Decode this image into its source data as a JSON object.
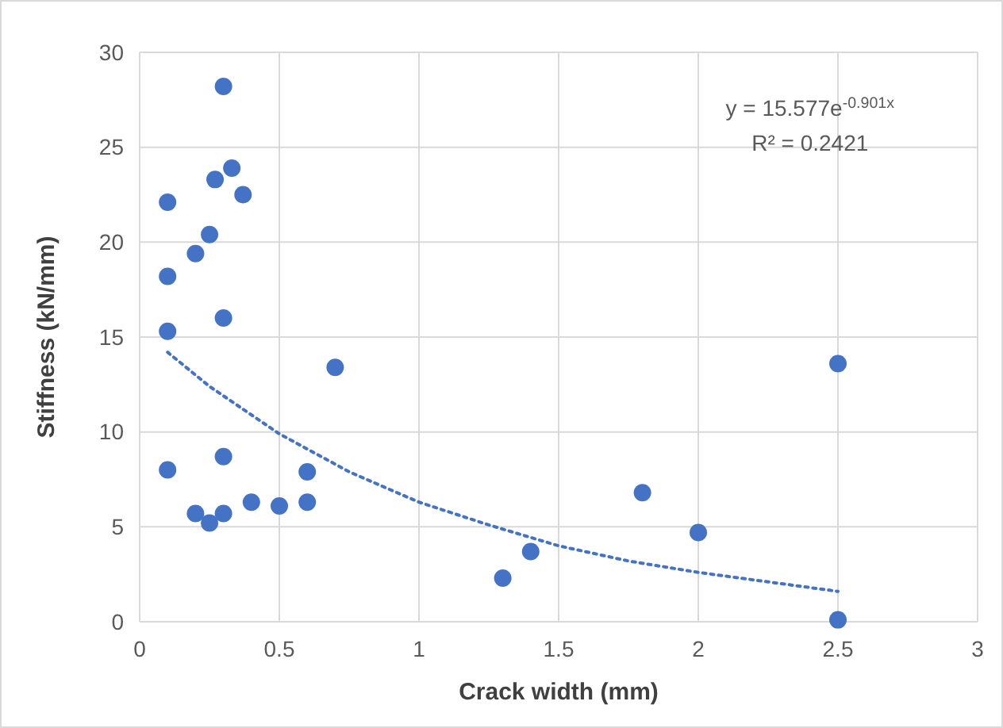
{
  "chart_data": {
    "type": "scatter",
    "xlabel": "Crack width (mm)",
    "ylabel": "Stiffness (kN/mm)",
    "xlim": [
      0,
      3
    ],
    "xticks": [
      0,
      0.5,
      1,
      1.5,
      2,
      2.5,
      3
    ],
    "ylim": [
      0,
      30
    ],
    "yticks": [
      0,
      5,
      10,
      15,
      20,
      25,
      30
    ],
    "grid": true,
    "annotations": [
      "y = 15.577e$^{-0.901x}$",
      "R² = 0.2421"
    ],
    "series": [
      {
        "marker": "circle",
        "color": "#4472c4",
        "x": [
          0.1,
          0.1,
          0.1,
          0.1,
          0.2,
          0.2,
          0.25,
          0.25,
          0.27,
          0.3,
          0.3,
          0.3,
          0.3,
          0.33,
          0.37,
          0.4,
          0.5,
          0.6,
          0.6,
          0.7,
          1.3,
          1.4,
          1.8,
          2.0,
          2.5,
          2.5
        ],
        "values": [
          22.1,
          18.2,
          15.3,
          8.0,
          19.4,
          5.7,
          20.4,
          5.2,
          23.3,
          28.2,
          16.0,
          8.7,
          5.7,
          23.9,
          22.5,
          6.3,
          6.1,
          7.9,
          6.3,
          13.4,
          2.3,
          3.7,
          6.8,
          4.7,
          13.6,
          0.1
        ]
      },
      {
        "type": "line",
        "color": "#4472c4",
        "line_style": "dotted",
        "x": [
          0.1,
          0.25,
          0.5,
          0.75,
          1,
          1.25,
          1.5,
          1.75,
          2,
          2.25,
          2.5
        ],
        "values": [
          14.2,
          12.4,
          9.9,
          7.9,
          6.3,
          5.1,
          4.0,
          3.2,
          2.6,
          2.1,
          1.6
        ]
      }
    ]
  }
}
